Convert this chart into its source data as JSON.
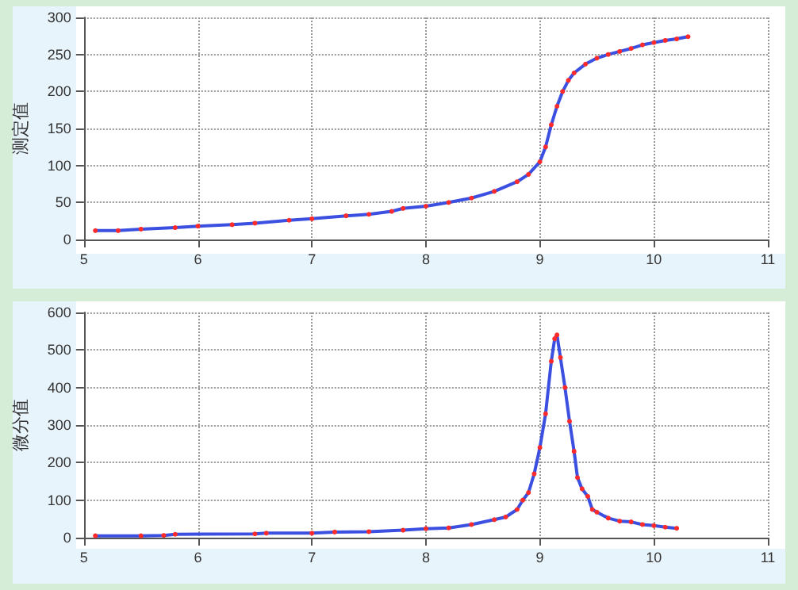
{
  "chart_data": [
    {
      "type": "line",
      "ylabel": "测定值",
      "xlim": [
        5,
        11
      ],
      "xticks": [
        5,
        6,
        7,
        8,
        9,
        10,
        11
      ],
      "ylim": [
        0,
        300
      ],
      "yticks": [
        0,
        50,
        100,
        150,
        200,
        250,
        300
      ],
      "grid": true,
      "marker": "circle",
      "line_style": "solid",
      "series": [
        {
          "color": "#3b4fe0",
          "x": [
            5.1,
            5.3,
            5.5,
            5.8,
            6.0,
            6.3,
            6.5,
            6.8,
            7.0,
            7.3,
            7.5,
            7.7,
            7.8,
            8.0,
            8.2,
            8.4,
            8.6,
            8.8,
            8.9,
            9.0,
            9.05,
            9.1,
            9.15,
            9.2,
            9.25,
            9.3,
            9.4,
            9.5,
            9.6,
            9.7,
            9.8,
            9.9,
            10.0,
            10.1,
            10.2,
            10.3
          ],
          "values": [
            12,
            12,
            14,
            16,
            18,
            20,
            22,
            26,
            28,
            32,
            34,
            38,
            42,
            45,
            50,
            56,
            65,
            78,
            88,
            105,
            125,
            155,
            180,
            200,
            215,
            225,
            237,
            245,
            250,
            254,
            258,
            263,
            266,
            269,
            271,
            274
          ]
        }
      ]
    },
    {
      "type": "line",
      "ylabel": "微分值",
      "xlim": [
        5,
        11
      ],
      "xticks": [
        5,
        6,
        7,
        8,
        9,
        10,
        11
      ],
      "ylim": [
        0,
        600
      ],
      "yticks": [
        0,
        100,
        200,
        300,
        400,
        500,
        600
      ],
      "grid": true,
      "marker": "circle",
      "line_style": "solid",
      "series": [
        {
          "color": "#3b4fe0",
          "x": [
            5.1,
            5.5,
            5.7,
            5.8,
            6.5,
            6.6,
            7.0,
            7.2,
            7.5,
            7.8,
            8.0,
            8.2,
            8.4,
            8.6,
            8.7,
            8.8,
            8.85,
            8.9,
            8.95,
            9.0,
            9.05,
            9.1,
            9.13,
            9.15,
            9.18,
            9.22,
            9.26,
            9.3,
            9.33,
            9.37,
            9.42,
            9.46,
            9.5,
            9.6,
            9.7,
            9.8,
            9.9,
            10.0,
            10.1,
            10.2
          ],
          "values": [
            5,
            5,
            6,
            9,
            10,
            12,
            12,
            15,
            16,
            20,
            24,
            26,
            35,
            48,
            55,
            75,
            100,
            120,
            170,
            240,
            330,
            470,
            530,
            540,
            480,
            400,
            310,
            230,
            160,
            130,
            110,
            75,
            68,
            52,
            44,
            42,
            35,
            32,
            28,
            25
          ]
        }
      ]
    }
  ]
}
